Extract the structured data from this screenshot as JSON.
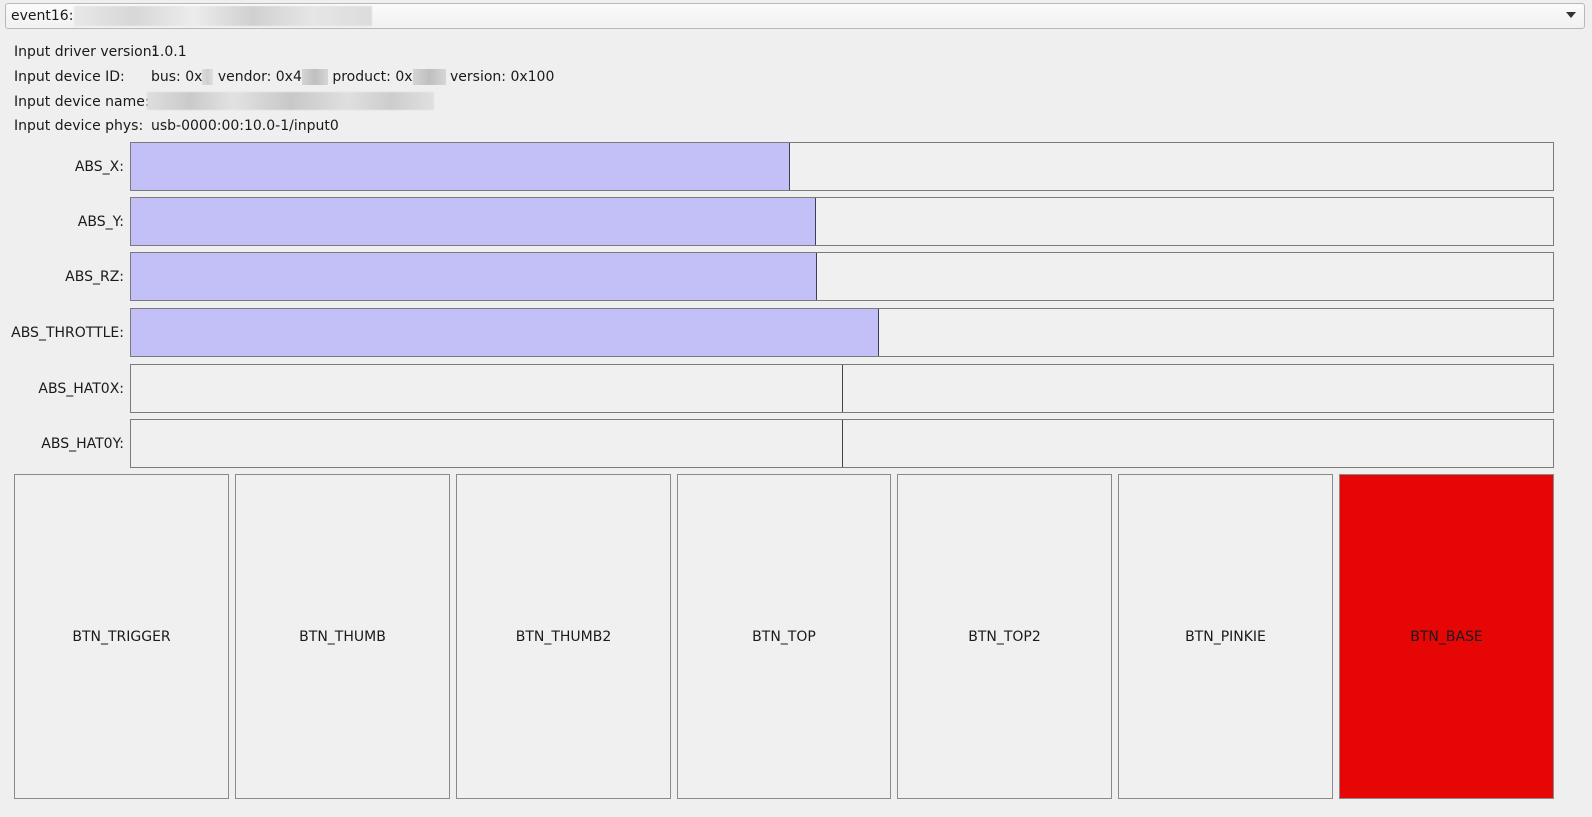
{
  "device_select": {
    "prefix": "event16:",
    "chevron_icon": "chevron-down-icon"
  },
  "info": {
    "driver_version_label": "Input driver version:",
    "driver_version_value": "1.0.1",
    "device_id_label": "Input device ID:",
    "device_id_parts": {
      "bus": "bus: 0x",
      "vendor": "vendor: 0x4",
      "product": "product: 0x",
      "version": "version: 0x100"
    },
    "device_name_label": "Input device name:",
    "device_phys_label": "Input device phys:",
    "device_phys_value": "usb-0000:00:10.0-1/input0"
  },
  "axes": [
    {
      "label": "ABS_X:",
      "value": 0.463
    },
    {
      "label": "ABS_Y:",
      "value": 0.481
    },
    {
      "label": "ABS_RZ:",
      "value": 0.482
    },
    {
      "label": "ABS_THROTTLE:",
      "value": 0.525
    },
    {
      "label": "ABS_HAT0X:",
      "value": null,
      "center": 0.5
    },
    {
      "label": "ABS_HAT0Y:",
      "value": null,
      "center": 0.5
    }
  ],
  "buttons": [
    {
      "label": "BTN_TRIGGER",
      "pressed": false
    },
    {
      "label": "BTN_THUMB",
      "pressed": false
    },
    {
      "label": "BTN_THUMB2",
      "pressed": false
    },
    {
      "label": "BTN_TOP",
      "pressed": false
    },
    {
      "label": "BTN_TOP2",
      "pressed": false
    },
    {
      "label": "BTN_PINKIE",
      "pressed": false
    },
    {
      "label": "BTN_BASE",
      "pressed": true
    }
  ],
  "colors": {
    "axis_fill": "#c2c0f6",
    "pressed_button": "#e60606"
  }
}
